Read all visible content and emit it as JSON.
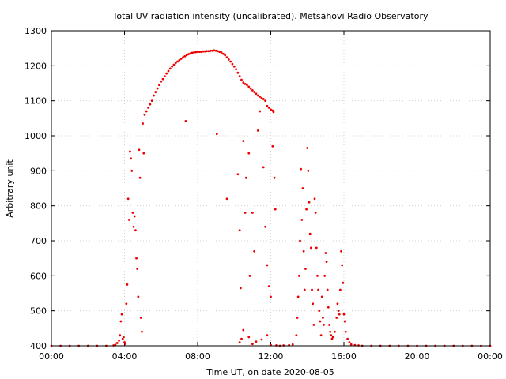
{
  "chart_data": {
    "type": "scatter",
    "title": "Total UV radiation intensity (uncalibrated). Metsähovi Radio Observatory",
    "xlabel": "Time UT, on date 2020-08-05",
    "ylabel": "Arbitrary unit",
    "xlim": [
      0,
      24
    ],
    "ylim": [
      400,
      1300
    ],
    "x_ticks": [
      {
        "value": 0,
        "label": "00:00"
      },
      {
        "value": 4,
        "label": "04:00"
      },
      {
        "value": 8,
        "label": "08:00"
      },
      {
        "value": 12,
        "label": "12:00"
      },
      {
        "value": 16,
        "label": "16:00"
      },
      {
        "value": 20,
        "label": "20:00"
      },
      {
        "value": 24,
        "label": "00:00"
      }
    ],
    "y_ticks": [
      {
        "value": 400,
        "label": "400"
      },
      {
        "value": 500,
        "label": "500"
      },
      {
        "value": 600,
        "label": "600"
      },
      {
        "value": 700,
        "label": "700"
      },
      {
        "value": 800,
        "label": "800"
      },
      {
        "value": 900,
        "label": "900"
      },
      {
        "value": 1000,
        "label": "1000"
      },
      {
        "value": 1100,
        "label": "1100"
      },
      {
        "value": 1200,
        "label": "1200"
      },
      {
        "value": 1300,
        "label": "1300"
      }
    ],
    "grid": true,
    "series_color": "#ee0000",
    "series": [
      {
        "points": [
          [
            0.0,
            400
          ],
          [
            0.5,
            400
          ],
          [
            1.0,
            400
          ],
          [
            1.5,
            400
          ],
          [
            2.0,
            400
          ],
          [
            2.5,
            400
          ],
          [
            3.0,
            400
          ],
          [
            3.4,
            401
          ],
          [
            3.5,
            403
          ],
          [
            3.6,
            408
          ],
          [
            3.7,
            415
          ],
          [
            3.75,
            430
          ],
          [
            3.8,
            470
          ],
          [
            3.85,
            490
          ],
          [
            3.9,
            420
          ],
          [
            3.95,
            425
          ],
          [
            4.0,
            410
          ],
          [
            4.05,
            405
          ],
          [
            4.1,
            520
          ],
          [
            4.15,
            575
          ],
          [
            4.2,
            820
          ],
          [
            4.25,
            760
          ],
          [
            4.3,
            955
          ],
          [
            4.35,
            935
          ],
          [
            4.4,
            900
          ],
          [
            4.45,
            780
          ],
          [
            4.5,
            740
          ],
          [
            4.55,
            770
          ],
          [
            4.6,
            730
          ],
          [
            4.65,
            650
          ],
          [
            4.7,
            620
          ],
          [
            4.75,
            540
          ],
          [
            4.8,
            960
          ],
          [
            4.85,
            880
          ],
          [
            4.9,
            480
          ],
          [
            4.95,
            440
          ],
          [
            5.0,
            1035
          ],
          [
            5.05,
            950
          ],
          [
            5.1,
            1060
          ],
          [
            5.2,
            1070
          ],
          [
            5.3,
            1080
          ],
          [
            5.4,
            1090
          ],
          [
            5.5,
            1100
          ],
          [
            5.6,
            1115
          ],
          [
            5.7,
            1125
          ],
          [
            5.8,
            1135
          ],
          [
            5.9,
            1145
          ],
          [
            6.0,
            1155
          ],
          [
            6.1,
            1162
          ],
          [
            6.2,
            1170
          ],
          [
            6.3,
            1178
          ],
          [
            6.4,
            1185
          ],
          [
            6.5,
            1192
          ],
          [
            6.6,
            1198
          ],
          [
            6.7,
            1203
          ],
          [
            6.8,
            1208
          ],
          [
            6.9,
            1212
          ],
          [
            7.0,
            1216
          ],
          [
            7.1,
            1220
          ],
          [
            7.2,
            1224
          ],
          [
            7.3,
            1227
          ],
          [
            7.35,
            1042
          ],
          [
            7.4,
            1230
          ],
          [
            7.5,
            1233
          ],
          [
            7.6,
            1235
          ],
          [
            7.7,
            1237
          ],
          [
            7.8,
            1238
          ],
          [
            7.9,
            1239
          ],
          [
            8.0,
            1240
          ],
          [
            8.1,
            1240
          ],
          [
            8.2,
            1240
          ],
          [
            8.3,
            1241
          ],
          [
            8.4,
            1241
          ],
          [
            8.5,
            1242
          ],
          [
            8.6,
            1242
          ],
          [
            8.7,
            1243
          ],
          [
            8.8,
            1243
          ],
          [
            8.9,
            1244
          ],
          [
            9.0,
            1243
          ],
          [
            9.05,
            1005
          ],
          [
            9.1,
            1242
          ],
          [
            9.2,
            1240
          ],
          [
            9.3,
            1238
          ],
          [
            9.4,
            1234
          ],
          [
            9.5,
            1230
          ],
          [
            9.6,
            1224
          ],
          [
            9.7,
            1218
          ],
          [
            9.8,
            1212
          ],
          [
            9.9,
            1205
          ],
          [
            10.0,
            1198
          ],
          [
            10.1,
            1190
          ],
          [
            10.2,
            1180
          ],
          [
            10.3,
            1170
          ],
          [
            10.4,
            1160
          ],
          [
            10.5,
            1152
          ],
          [
            10.6,
            1148
          ],
          [
            10.7,
            1145
          ],
          [
            10.8,
            1140
          ],
          [
            10.9,
            1135
          ],
          [
            11.0,
            1130
          ],
          [
            11.1,
            1125
          ],
          [
            11.2,
            1120
          ],
          [
            11.3,
            1115
          ],
          [
            11.4,
            1112
          ],
          [
            11.5,
            1108
          ],
          [
            11.6,
            1105
          ],
          [
            11.7,
            1100
          ],
          [
            11.8,
            1085
          ],
          [
            11.9,
            1080
          ],
          [
            12.0,
            1075
          ],
          [
            12.1,
            1072
          ],
          [
            12.15,
            1068
          ],
          [
            9.6,
            820
          ],
          [
            10.2,
            890
          ],
          [
            10.3,
            730
          ],
          [
            10.35,
            565
          ],
          [
            10.5,
            985
          ],
          [
            10.6,
            780
          ],
          [
            10.65,
            880
          ],
          [
            10.8,
            950
          ],
          [
            10.85,
            600
          ],
          [
            11.0,
            780
          ],
          [
            11.1,
            670
          ],
          [
            11.3,
            1015
          ],
          [
            11.4,
            1070
          ],
          [
            11.6,
            910
          ],
          [
            11.7,
            740
          ],
          [
            11.8,
            630
          ],
          [
            11.9,
            570
          ],
          [
            12.0,
            540
          ],
          [
            12.1,
            970
          ],
          [
            12.2,
            880
          ],
          [
            12.25,
            790
          ],
          [
            10.3,
            410
          ],
          [
            10.4,
            420
          ],
          [
            10.5,
            445
          ],
          [
            10.8,
            425
          ],
          [
            11.0,
            405
          ],
          [
            11.2,
            412
          ],
          [
            11.5,
            418
          ],
          [
            11.8,
            430
          ],
          [
            12.0,
            402
          ],
          [
            12.3,
            401
          ],
          [
            12.5,
            400
          ],
          [
            12.7,
            401
          ],
          [
            13.0,
            402
          ],
          [
            13.2,
            404
          ],
          [
            13.4,
            430
          ],
          [
            13.45,
            480
          ],
          [
            13.5,
            540
          ],
          [
            13.55,
            600
          ],
          [
            13.6,
            700
          ],
          [
            13.65,
            905
          ],
          [
            13.7,
            760
          ],
          [
            13.75,
            850
          ],
          [
            13.8,
            670
          ],
          [
            13.85,
            560
          ],
          [
            13.9,
            620
          ],
          [
            13.95,
            790
          ],
          [
            14.0,
            965
          ],
          [
            14.05,
            900
          ],
          [
            14.1,
            810
          ],
          [
            14.15,
            720
          ],
          [
            14.2,
            680
          ],
          [
            14.25,
            560
          ],
          [
            14.3,
            520
          ],
          [
            14.35,
            460
          ],
          [
            14.4,
            820
          ],
          [
            14.45,
            780
          ],
          [
            14.5,
            680
          ],
          [
            14.55,
            600
          ],
          [
            14.6,
            560
          ],
          [
            14.65,
            500
          ],
          [
            14.7,
            470
          ],
          [
            14.75,
            430
          ],
          [
            14.8,
            540
          ],
          [
            14.85,
            480
          ],
          [
            14.9,
            460
          ],
          [
            14.95,
            600
          ],
          [
            15.0,
            665
          ],
          [
            15.05,
            640
          ],
          [
            15.1,
            560
          ],
          [
            15.15,
            510
          ],
          [
            15.2,
            460
          ],
          [
            15.25,
            440
          ],
          [
            15.3,
            430
          ],
          [
            15.35,
            420
          ],
          [
            15.4,
            425
          ],
          [
            15.5,
            440
          ],
          [
            15.6,
            480
          ],
          [
            15.65,
            520
          ],
          [
            15.7,
            500
          ],
          [
            15.75,
            490
          ],
          [
            15.8,
            560
          ],
          [
            15.85,
            670
          ],
          [
            15.9,
            630
          ],
          [
            15.95,
            580
          ],
          [
            16.0,
            490
          ],
          [
            16.05,
            470
          ],
          [
            16.1,
            440
          ],
          [
            16.2,
            420
          ],
          [
            16.3,
            410
          ],
          [
            16.4,
            404
          ],
          [
            16.6,
            402
          ],
          [
            16.8,
            401
          ],
          [
            17.0,
            400
          ],
          [
            17.5,
            400
          ],
          [
            18.0,
            400
          ],
          [
            18.5,
            400
          ],
          [
            19.0,
            400
          ],
          [
            19.5,
            400
          ],
          [
            20.0,
            400
          ],
          [
            20.5,
            400
          ],
          [
            21.0,
            400
          ],
          [
            21.5,
            400
          ],
          [
            22.0,
            400
          ],
          [
            22.5,
            400
          ],
          [
            23.0,
            400
          ],
          [
            23.5,
            400
          ],
          [
            24.0,
            400
          ]
        ]
      }
    ]
  }
}
